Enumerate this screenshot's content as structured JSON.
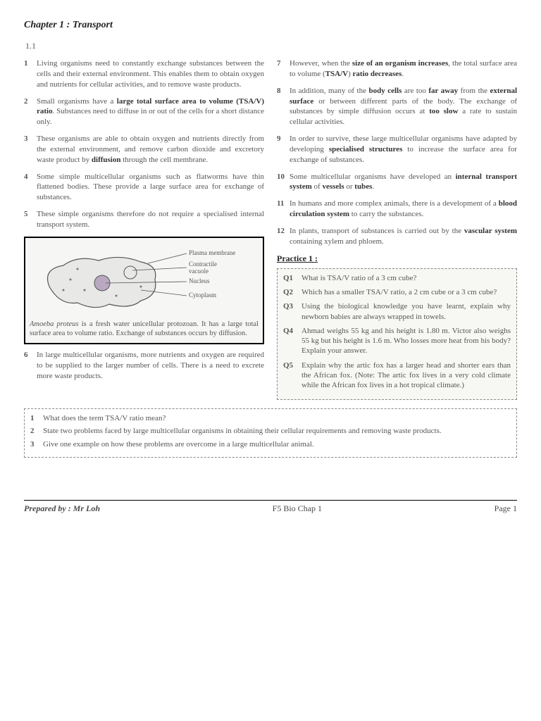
{
  "chapterTitle": "Chapter 1 : Transport",
  "sectionNumber": "1.1",
  "leftItems": [
    {
      "n": "1",
      "t": "Living organisms need to constantly exchange substances between the cells and their external environment. This enables them to obtain oxygen and nutrients for cellular activities, and to remove waste products."
    },
    {
      "n": "2",
      "t": "Small organisms have a <b>large total surface area to volume (TSA/V) ratio</b>. Substances need to diffuse in or out of the cells for a short distance only."
    },
    {
      "n": "3",
      "t": "These organisms are able to obtain oxygen and nutrients directly from the external environment, and remove carbon dioxide and excretory waste product by <b>diffusion</b> through the cell membrane."
    },
    {
      "n": "4",
      "t": "Some simple multicellular organisms such as flatworms have thin flattened bodies. These provide a large surface area for exchange of substances."
    },
    {
      "n": "5",
      "t": "These simple organisms therefore do not require a specialised internal transport system."
    }
  ],
  "leftItems2": [
    {
      "n": "6",
      "t": "In large multicellular organisms, more nutrients and oxygen are required to be supplied to the larger number of cells. There is a need to excrete more waste products."
    }
  ],
  "rightItems": [
    {
      "n": "7",
      "t": "However, when the <b>size of an organism increases</b>, the total surface area to volume (<b>TSA/V</b>) <b>ratio decreases</b>."
    },
    {
      "n": "8",
      "t": "In addition, many of the <b>body cells</b> are too <b>far away</b> from the <b>external surface</b> or between different parts of the body. The exchange of substances by simple diffusion occurs at <b>too slow</b> a rate to sustain cellular activities."
    },
    {
      "n": "9",
      "t": "In order to survive, these large multicellular organisms have adapted by developing <b>specialised structures</b> to increase the surface area for exchange of substances."
    },
    {
      "n": "10",
      "t": "Some multicellular organisms have developed an <b>internal transport system</b> of <b>vessels</b> or <b>tubes</b>."
    },
    {
      "n": "11",
      "t": "In humans and more complex animals, there is a development of a <b>blood circulation system</b> to carry the substances."
    },
    {
      "n": "12",
      "t": "In plants, transport of substances is carried out by the <b>vascular system</b> containing xylem and phloem."
    }
  ],
  "diagram": {
    "labels": [
      "Plasma membrane",
      "Contractile vacuole",
      "Nucleus",
      "Cytoplasm"
    ],
    "caption": "<i>Amoeba proteus</i> is a fresh water unicellular protozoan. It has a large total surface area to volume ratio. Exchange of substances occurs by diffusion."
  },
  "practiceTitle": "Practice 1 :",
  "practiceQs": [
    {
      "n": "Q1",
      "t": "What is TSA/V ratio of a 3 cm cube?"
    },
    {
      "n": "Q2",
      "t": "Which has a smaller TSA/V ratio, a 2 cm cube or a 3 cm cube?"
    },
    {
      "n": "Q3",
      "t": "Using the biological knowledge you have learnt, explain why newborn babies are always wrapped in towels."
    },
    {
      "n": "Q4",
      "t": "Ahmad weighs 55 kg and his height is 1.80 m. Victor also weighs 55 kg but his height is 1.6 m. Who losses more heat from his body? Explain your answer."
    },
    {
      "n": "Q5",
      "t": "Explain why the artic fox has a larger head and shorter ears than the African fox. (Note: The artic fox lives in a very cold climate while the African fox lives in a hot tropical climate.)"
    }
  ],
  "bottomQs": [
    {
      "n": "1",
      "t": "What does the term TSA/V ratio mean?"
    },
    {
      "n": "2",
      "t": "State two problems faced by large multicellular organisms in obtaining their cellular requirements and removing waste products."
    },
    {
      "n": "3",
      "t": "Give one example on how these problems are overcome in a large multicellular animal."
    }
  ],
  "footer": {
    "prep": "Prepared by : Mr Loh",
    "center": "F5 Bio Chap 1",
    "page": "Page 1"
  }
}
